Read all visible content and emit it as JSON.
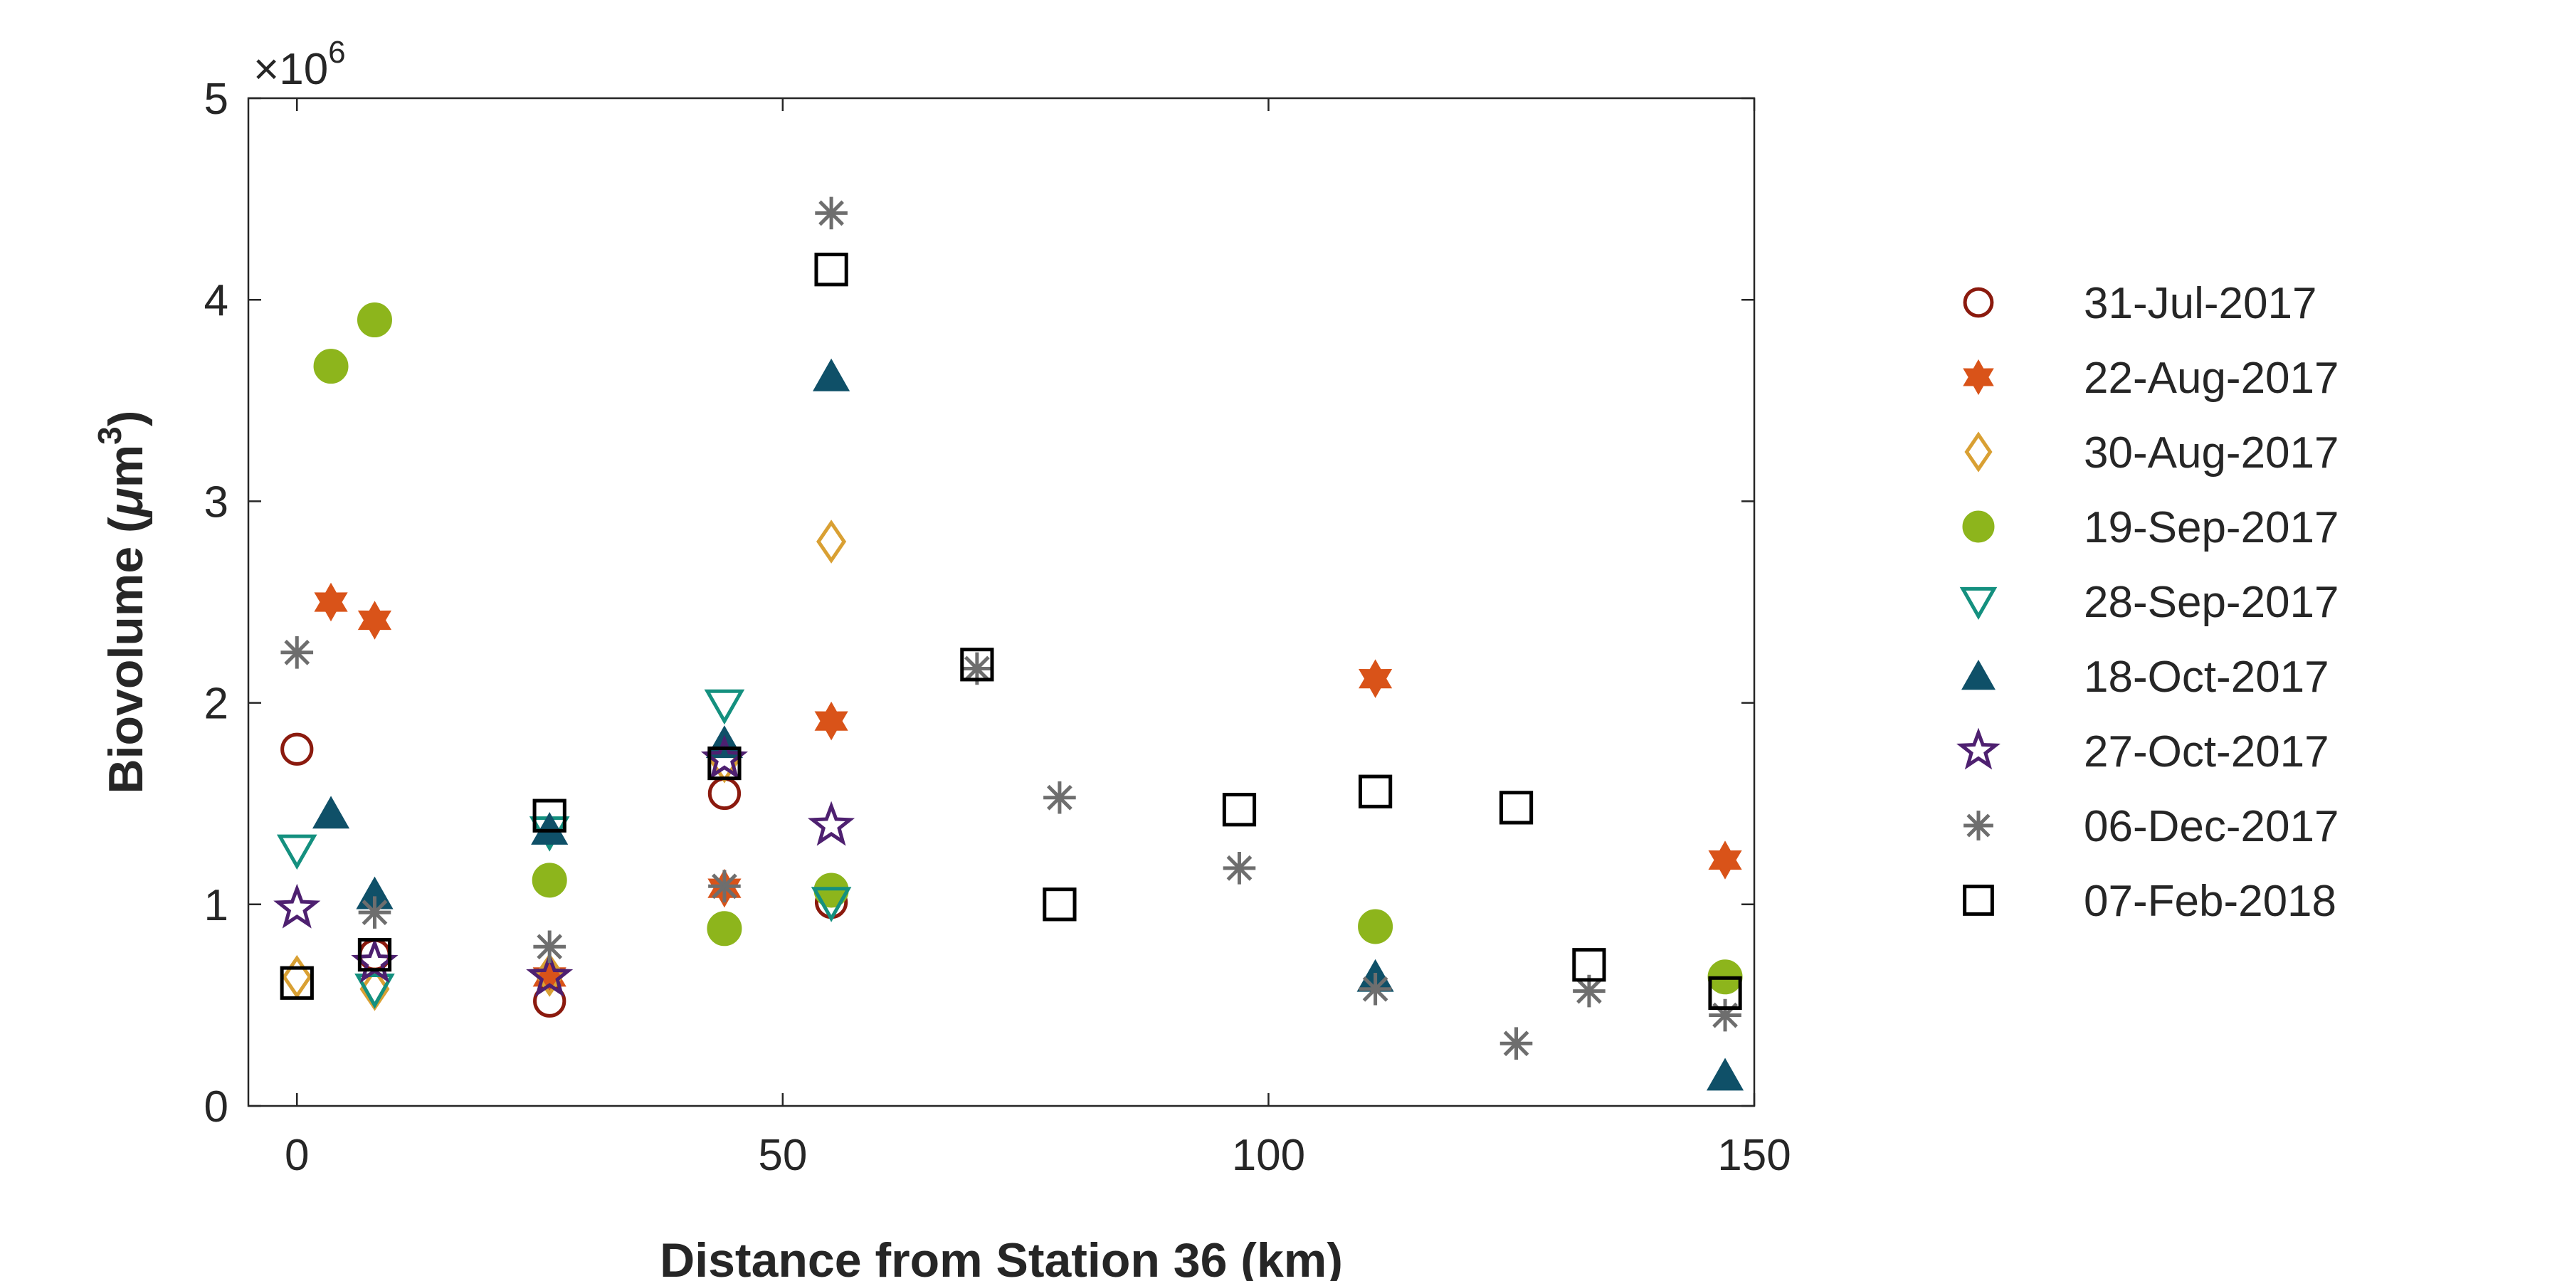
{
  "chart_data": {
    "type": "scatter",
    "xlabel": "Distance from Station 36 (km)",
    "ylabel_text": "Biovolume (",
    "ylabel_mu": "μ",
    "ylabel_unit": "m",
    "ylabel_sup": "3",
    "ylabel_close": ")",
    "y_exponent_prefix": "×10",
    "y_exponent_power": "6",
    "xlim": [
      -5,
      150
    ],
    "ylim": [
      0,
      5000000
    ],
    "x_ticks": [
      "0",
      "50",
      "100",
      "150"
    ],
    "y_ticks": [
      "0",
      "1",
      "2",
      "3",
      "4",
      "5"
    ],
    "grid": false,
    "legend_position": "right",
    "series": [
      {
        "name": "31-Jul-2017",
        "marker": "circle-open",
        "color": "#8B1A0E",
        "points": [
          [
            0,
            1770000
          ],
          [
            8,
            750000
          ],
          [
            26,
            520000
          ],
          [
            44,
            1550000
          ],
          [
            55,
            1010000
          ]
        ]
      },
      {
        "name": "22-Aug-2017",
        "marker": "hexagram-filled",
        "color": "#D95319",
        "points": [
          [
            3.5,
            2500000
          ],
          [
            8,
            2410000
          ],
          [
            26,
            640000
          ],
          [
            44,
            1080000
          ],
          [
            55,
            1910000
          ],
          [
            111,
            2120000
          ],
          [
            147,
            1220000
          ]
        ]
      },
      {
        "name": "30-Aug-2017",
        "marker": "diamond-open",
        "color": "#D9A033",
        "points": [
          [
            0,
            640000
          ],
          [
            8,
            580000
          ],
          [
            26,
            650000
          ],
          [
            44,
            1710000
          ],
          [
            55,
            2800000
          ]
        ]
      },
      {
        "name": "19-Sep-2017",
        "marker": "circle-filled",
        "color": "#8DB51C",
        "points": [
          [
            3.5,
            3670000
          ],
          [
            8,
            3900000
          ],
          [
            26,
            1120000
          ],
          [
            44,
            880000
          ],
          [
            55,
            1070000
          ],
          [
            111,
            890000
          ],
          [
            147,
            640000
          ]
        ]
      },
      {
        "name": "28-Sep-2017",
        "marker": "triangle-down-open",
        "color": "#14907F",
        "points": [
          [
            0,
            1270000
          ],
          [
            8,
            580000
          ],
          [
            26,
            1360000
          ],
          [
            44,
            1990000
          ],
          [
            55,
            1010000
          ]
        ]
      },
      {
        "name": "18-Oct-2017",
        "marker": "triangle-up-filled",
        "color": "#0F5068",
        "points": [
          [
            3.5,
            1450000
          ],
          [
            8,
            1050000
          ],
          [
            26,
            1370000
          ],
          [
            44,
            1800000
          ],
          [
            55,
            3620000
          ],
          [
            111,
            640000
          ],
          [
            147,
            150000
          ]
        ]
      },
      {
        "name": "27-Oct-2017",
        "marker": "pentagram-open",
        "color": "#4E2070",
        "points": [
          [
            0,
            980000
          ],
          [
            8,
            710000
          ],
          [
            26,
            640000
          ],
          [
            44,
            1720000
          ],
          [
            55,
            1390000
          ]
        ]
      },
      {
        "name": "06-Dec-2017",
        "marker": "asterisk",
        "color": "#6E6E6E",
        "points": [
          [
            0,
            2250000
          ],
          [
            8,
            960000
          ],
          [
            26,
            790000
          ],
          [
            44,
            1090000
          ],
          [
            55,
            4430000
          ],
          [
            70,
            2170000
          ],
          [
            78.5,
            1530000
          ],
          [
            97,
            1180000
          ],
          [
            111,
            580000
          ],
          [
            125.5,
            310000
          ],
          [
            133,
            570000
          ],
          [
            147,
            450000
          ]
        ]
      },
      {
        "name": "07-Feb-2018",
        "marker": "square-open",
        "color": "#000000",
        "points": [
          [
            0,
            610000
          ],
          [
            8,
            750000
          ],
          [
            26,
            1440000
          ],
          [
            44,
            1700000
          ],
          [
            55,
            4150000
          ],
          [
            70,
            2190000
          ],
          [
            78.5,
            1000000
          ],
          [
            97,
            1470000
          ],
          [
            111,
            1560000
          ],
          [
            125.5,
            1480000
          ],
          [
            133,
            700000
          ],
          [
            147,
            560000
          ]
        ]
      }
    ]
  }
}
